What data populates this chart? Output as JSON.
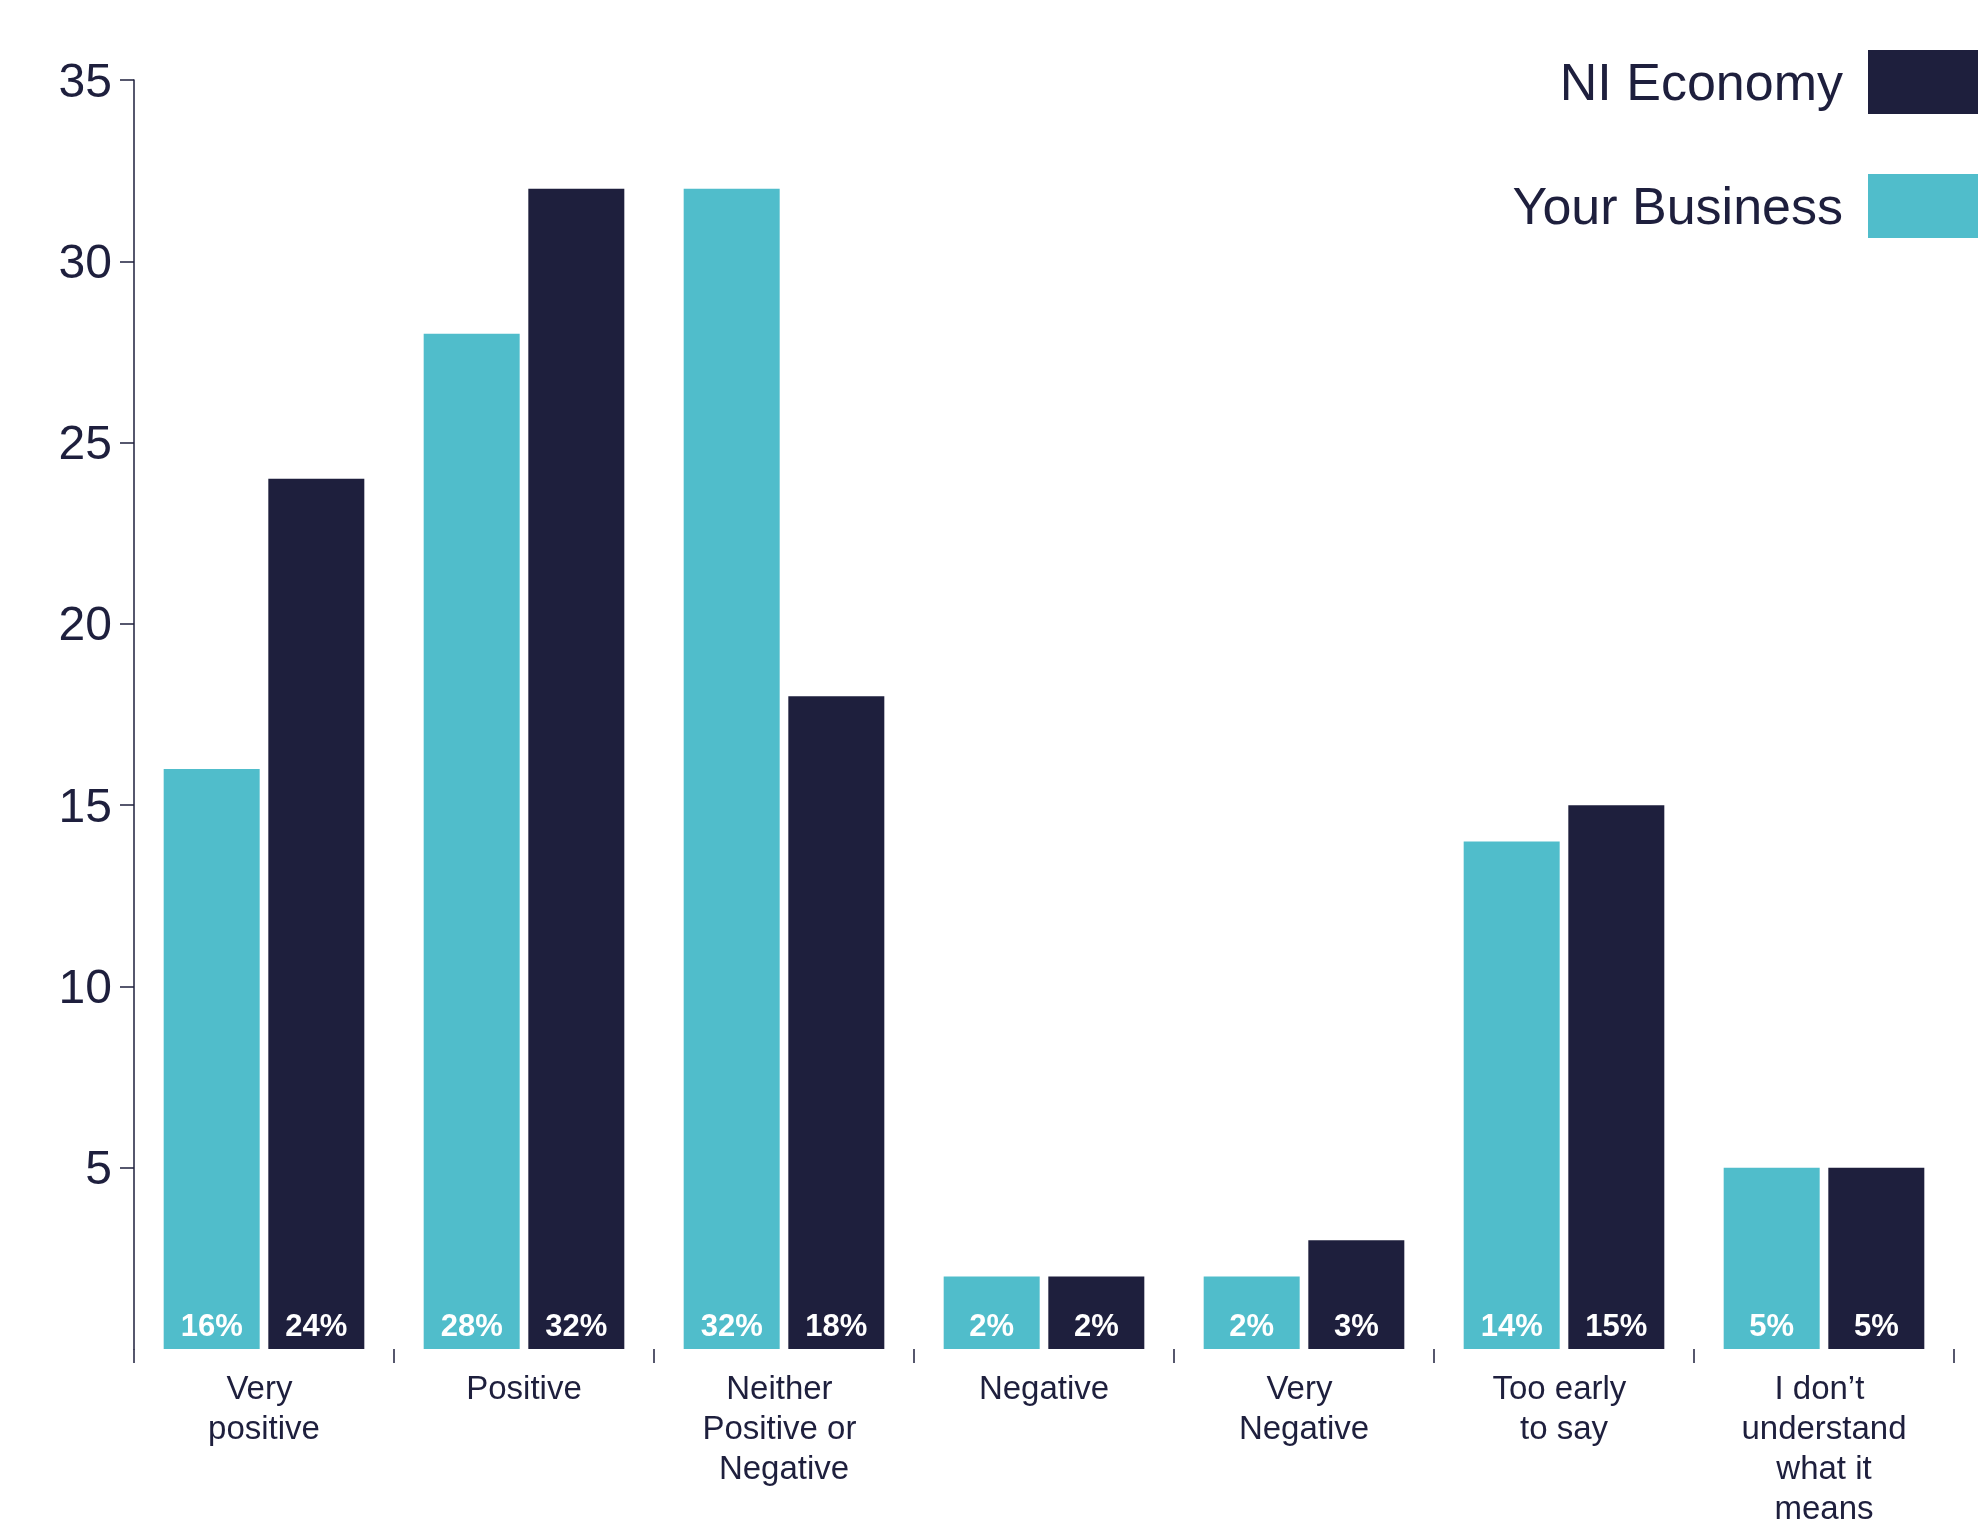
{
  "chart_data": {
    "type": "bar",
    "categories": [
      "Very positive",
      "Positive",
      "Neither Positive or Negative",
      "Negative",
      "Very Negative",
      "Too early to say",
      "I don’t understand what it means"
    ],
    "series": [
      {
        "name": "Your Business",
        "color": "#50bdcb",
        "values": [
          16,
          28,
          32,
          2,
          2,
          14,
          5
        ],
        "value_labels": [
          "16%",
          "28%",
          "32%",
          "2%",
          "2%",
          "14%",
          "5%"
        ]
      },
      {
        "name": "NI Economy",
        "color": "#1e1f3d",
        "values": [
          24,
          32,
          18,
          2,
          3,
          15,
          5
        ],
        "value_labels": [
          "24%",
          "32%",
          "18%",
          "2%",
          "3%",
          "15%",
          "5%"
        ]
      }
    ],
    "ylim": [
      0,
      35
    ],
    "yticks": [
      5,
      10,
      15,
      20,
      25,
      30,
      35
    ],
    "grid": false,
    "legend": "top right"
  }
}
